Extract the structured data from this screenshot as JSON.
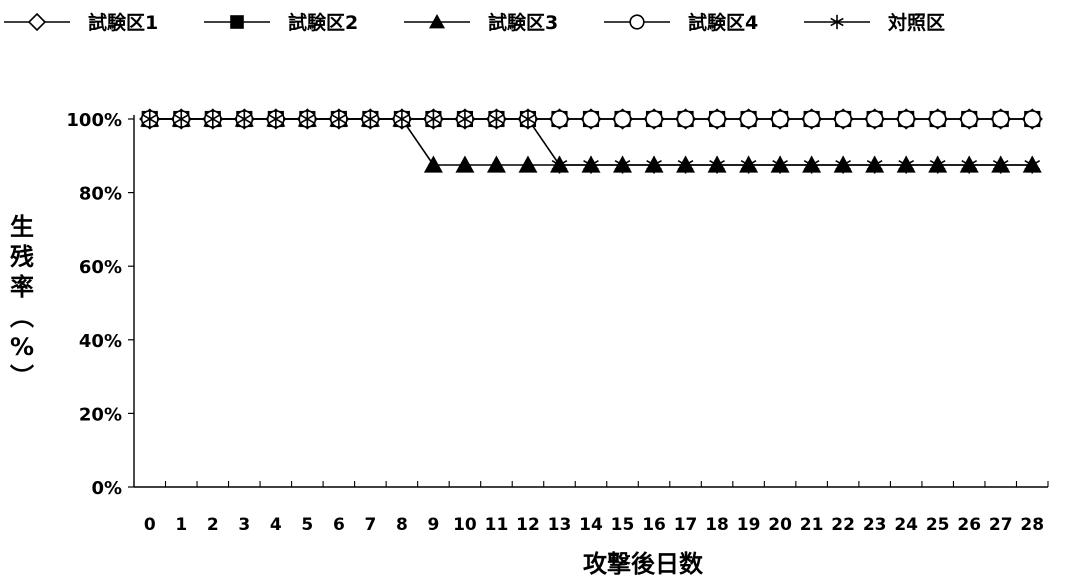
{
  "chart_data": {
    "type": "line",
    "xlabel": "攻撃後日数",
    "ylabel_chars": [
      "生",
      "残",
      "率",
      "︵",
      "%",
      "︶"
    ],
    "ylim": [
      0,
      100
    ],
    "yticks": [
      "0%",
      "20%",
      "40%",
      "60%",
      "80%",
      "100%"
    ],
    "grid": false,
    "legend_position": "top",
    "x": [
      0,
      1,
      2,
      3,
      4,
      5,
      6,
      7,
      8,
      9,
      10,
      11,
      12,
      13,
      14,
      15,
      16,
      17,
      18,
      19,
      20,
      21,
      22,
      23,
      24,
      25,
      26,
      27,
      28
    ],
    "series": [
      {
        "name": "試験区1",
        "marker": "diamond-open",
        "values": [
          100,
          100,
          100,
          100,
          100,
          100,
          100,
          100,
          100,
          100,
          100,
          100,
          100,
          100,
          100,
          100,
          100,
          100,
          100,
          100,
          100,
          100,
          100,
          100,
          100,
          100,
          100,
          100,
          100
        ]
      },
      {
        "name": "試験区2",
        "marker": "square-filled",
        "values": [
          100,
          100,
          100,
          100,
          100,
          100,
          100,
          100,
          100,
          100,
          100,
          100,
          100,
          100,
          100,
          100,
          100,
          100,
          100,
          100,
          100,
          100,
          100,
          100,
          100,
          100,
          100,
          100,
          100
        ]
      },
      {
        "name": "試験区3",
        "marker": "triangle-filled",
        "values": [
          100,
          100,
          100,
          100,
          100,
          100,
          100,
          100,
          100,
          87.5,
          87.5,
          87.5,
          87.5,
          87.5,
          87.5,
          87.5,
          87.5,
          87.5,
          87.5,
          87.5,
          87.5,
          87.5,
          87.5,
          87.5,
          87.5,
          87.5,
          87.5,
          87.5,
          87.5
        ]
      },
      {
        "name": "試験区4",
        "marker": "circle-open",
        "values": [
          100,
          100,
          100,
          100,
          100,
          100,
          100,
          100,
          100,
          100,
          100,
          100,
          100,
          100,
          100,
          100,
          100,
          100,
          100,
          100,
          100,
          100,
          100,
          100,
          100,
          100,
          100,
          100,
          100
        ]
      },
      {
        "name": "対照区",
        "marker": "asterisk",
        "values": [
          100,
          100,
          100,
          100,
          100,
          100,
          100,
          100,
          100,
          100,
          100,
          100,
          100,
          87.5,
          87.5,
          87.5,
          87.5,
          87.5,
          87.5,
          87.5,
          87.5,
          87.5,
          87.5,
          87.5,
          87.5,
          87.5,
          87.5,
          87.5,
          87.5
        ]
      }
    ]
  }
}
